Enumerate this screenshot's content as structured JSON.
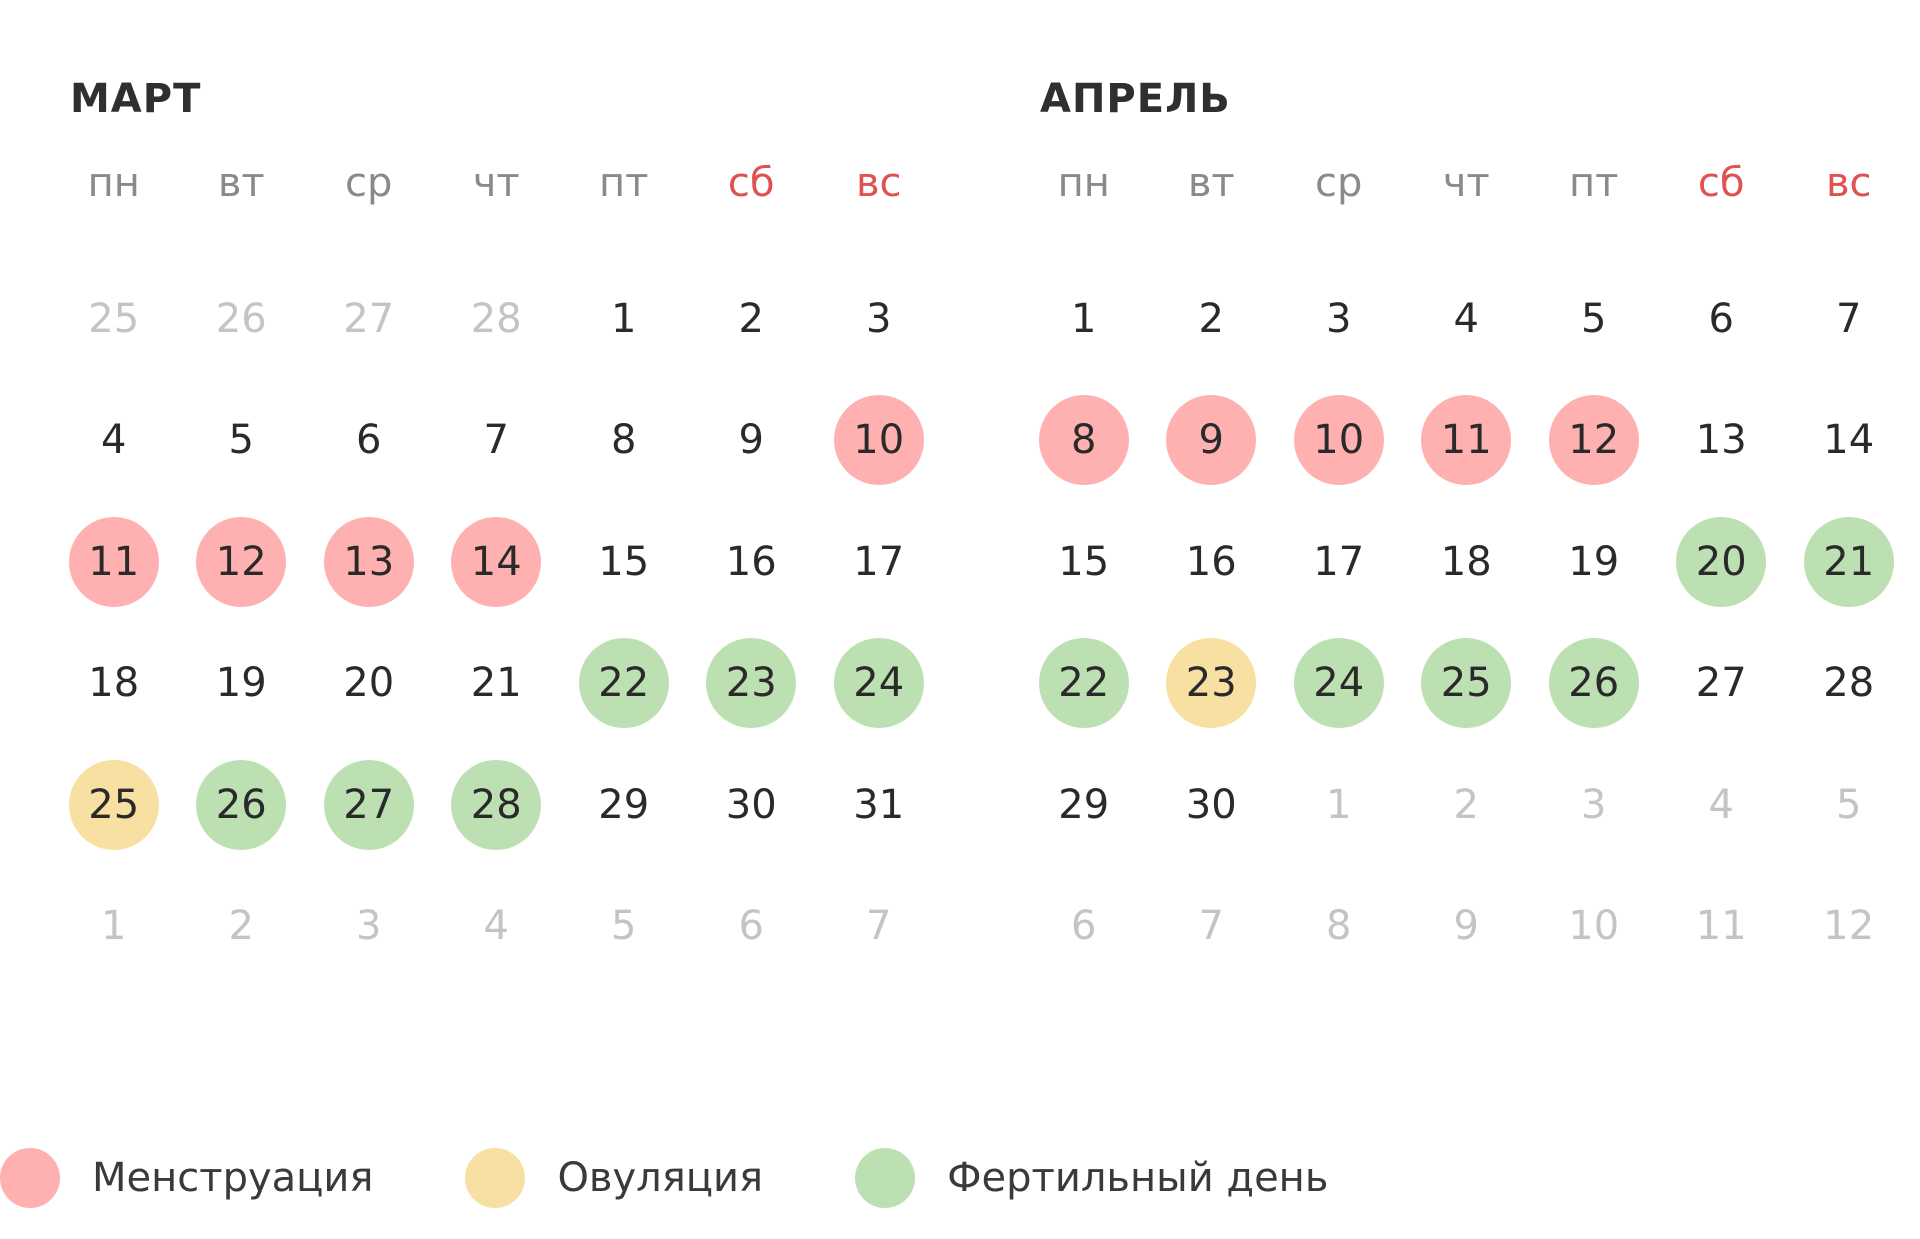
{
  "colors": {
    "menstruation": "#ffb0b0",
    "ovulation": "#f8dfa2",
    "fertile": "#bde0b3",
    "weekend": "#e05252",
    "muted": "#c4c4c4"
  },
  "weekdays": [
    "пн",
    "вт",
    "ср",
    "чт",
    "пт",
    "сб",
    "вс"
  ],
  "months": [
    {
      "title": "МАРТ",
      "weeks": [
        [
          {
            "d": "25",
            "other": true
          },
          {
            "d": "26",
            "other": true
          },
          {
            "d": "27",
            "other": true
          },
          {
            "d": "28",
            "other": true
          },
          {
            "d": "1"
          },
          {
            "d": "2"
          },
          {
            "d": "3"
          }
        ],
        [
          {
            "d": "4"
          },
          {
            "d": "5"
          },
          {
            "d": "6"
          },
          {
            "d": "7"
          },
          {
            "d": "8"
          },
          {
            "d": "9"
          },
          {
            "d": "10",
            "t": "m"
          }
        ],
        [
          {
            "d": "11",
            "t": "m"
          },
          {
            "d": "12",
            "t": "m"
          },
          {
            "d": "13",
            "t": "m"
          },
          {
            "d": "14",
            "t": "m"
          },
          {
            "d": "15"
          },
          {
            "d": "16"
          },
          {
            "d": "17"
          }
        ],
        [
          {
            "d": "18"
          },
          {
            "d": "19"
          },
          {
            "d": "20"
          },
          {
            "d": "21"
          },
          {
            "d": "22",
            "t": "f"
          },
          {
            "d": "23",
            "t": "f"
          },
          {
            "d": "24",
            "t": "f"
          }
        ],
        [
          {
            "d": "25",
            "t": "o"
          },
          {
            "d": "26",
            "t": "f"
          },
          {
            "d": "27",
            "t": "f"
          },
          {
            "d": "28",
            "t": "f"
          },
          {
            "d": "29"
          },
          {
            "d": "30"
          },
          {
            "d": "31"
          }
        ],
        [
          {
            "d": "1",
            "other": true
          },
          {
            "d": "2",
            "other": true
          },
          {
            "d": "3",
            "other": true
          },
          {
            "d": "4",
            "other": true
          },
          {
            "d": "5",
            "other": true
          },
          {
            "d": "6",
            "other": true
          },
          {
            "d": "7",
            "other": true
          }
        ]
      ]
    },
    {
      "title": "АПРЕЛЬ",
      "weeks": [
        [
          {
            "d": "1"
          },
          {
            "d": "2"
          },
          {
            "d": "3"
          },
          {
            "d": "4"
          },
          {
            "d": "5"
          },
          {
            "d": "6"
          },
          {
            "d": "7"
          }
        ],
        [
          {
            "d": "8",
            "t": "m"
          },
          {
            "d": "9",
            "t": "m"
          },
          {
            "d": "10",
            "t": "m"
          },
          {
            "d": "11",
            "t": "m"
          },
          {
            "d": "12",
            "t": "m"
          },
          {
            "d": "13"
          },
          {
            "d": "14"
          }
        ],
        [
          {
            "d": "15"
          },
          {
            "d": "16"
          },
          {
            "d": "17"
          },
          {
            "d": "18"
          },
          {
            "d": "19"
          },
          {
            "d": "20",
            "t": "f"
          },
          {
            "d": "21",
            "t": "f"
          }
        ],
        [
          {
            "d": "22",
            "t": "f"
          },
          {
            "d": "23",
            "t": "o"
          },
          {
            "d": "24",
            "t": "f"
          },
          {
            "d": "25",
            "t": "f"
          },
          {
            "d": "26",
            "t": "f"
          },
          {
            "d": "27"
          },
          {
            "d": "28"
          }
        ],
        [
          {
            "d": "29"
          },
          {
            "d": "30"
          },
          {
            "d": "1",
            "other": true
          },
          {
            "d": "2",
            "other": true
          },
          {
            "d": "3",
            "other": true
          },
          {
            "d": "4",
            "other": true
          },
          {
            "d": "5",
            "other": true
          }
        ],
        [
          {
            "d": "6",
            "other": true
          },
          {
            "d": "7",
            "other": true
          },
          {
            "d": "8",
            "other": true
          },
          {
            "d": "9",
            "other": true
          },
          {
            "d": "10",
            "other": true
          },
          {
            "d": "11",
            "other": true
          },
          {
            "d": "12",
            "other": true
          }
        ]
      ]
    }
  ],
  "legend": {
    "menstruation": "Менструация",
    "ovulation": "Овуляция",
    "fertile": "Фертильный день"
  }
}
